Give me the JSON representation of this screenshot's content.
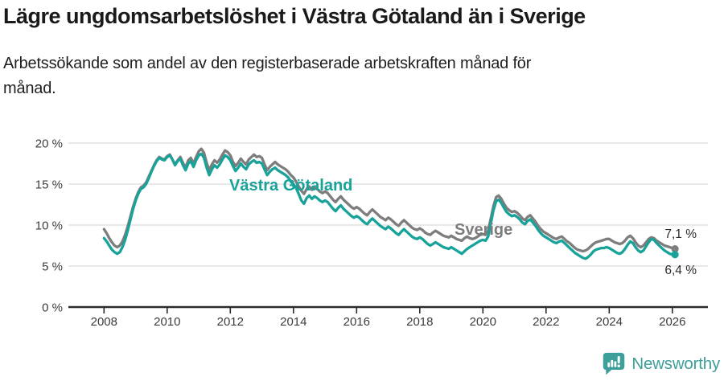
{
  "header": {
    "title": "Lägre ungdomsarbetslöshet i Västra Götaland än i Sverige",
    "subtitle": "Arbetssökande som andel av den registerbaserade arbetskraften månad för månad.",
    "subtitle_lines": [
      "Arbetssökande som andel av den registerbaserade arbetskraften månad för",
      "månad."
    ]
  },
  "colors": {
    "accent_teal": "#17a29a",
    "line_gray": "#7d7d7d",
    "logo_teal": "#3d9e9a",
    "axis": "#2b2b2b",
    "grid": "#dcdcdc",
    "tick_text": "#3c3c3c",
    "annotation_text": "#2b2b2b"
  },
  "footer": {
    "brand": "Newsworthy"
  },
  "chart_data": {
    "type": "line",
    "title": "Lägre ungdomsarbetslöshet i Västra Götaland än i Sverige",
    "subtitle": "Arbetssökande som andel av den registerbaserade arbetskraften månad för månad.",
    "x_unit": "month",
    "x_start": "2008-01",
    "x_end": "2026-02",
    "ylim": [
      0,
      20
    ],
    "grid": "horizontal",
    "legend_position": "inline-labels",
    "x_ticks": [
      2008,
      2010,
      2012,
      2014,
      2016,
      2018,
      2020,
      2022,
      2024,
      2026
    ],
    "y_ticks": [
      {
        "value": 20,
        "label": "20 %"
      },
      {
        "value": 15,
        "label": "15 %"
      },
      {
        "value": 10,
        "label": "10 %"
      },
      {
        "value": 5,
        "label": "5 %"
      },
      {
        "value": 0,
        "label": "0 %"
      }
    ],
    "series": [
      {
        "name": "Sverige",
        "color": "#7d7d7d",
        "end_label": "7,1 %",
        "end_value": 7.1,
        "values": [
          9.5,
          9.0,
          8.4,
          7.9,
          7.5,
          7.3,
          7.5,
          8.0,
          8.8,
          9.8,
          11.0,
          12.2,
          13.2,
          14.0,
          14.6,
          14.8,
          15.2,
          15.9,
          16.6,
          17.3,
          17.9,
          18.3,
          18.1,
          18.0,
          18.4,
          18.6,
          18.0,
          17.4,
          17.9,
          18.3,
          17.6,
          17.0,
          17.9,
          18.2,
          17.5,
          18.3,
          19.0,
          19.3,
          18.8,
          17.6,
          16.7,
          17.4,
          17.9,
          17.6,
          18.0,
          18.6,
          19.1,
          18.9,
          18.5,
          17.7,
          17.2,
          17.6,
          18.1,
          17.7,
          17.4,
          18.0,
          18.3,
          18.6,
          18.3,
          18.4,
          18.2,
          17.4,
          16.7,
          17.1,
          17.4,
          17.7,
          17.4,
          17.2,
          17.0,
          16.8,
          16.5,
          16.1,
          15.8,
          15.3,
          14.7,
          14.2,
          13.8,
          14.4,
          14.7,
          14.3,
          14.6,
          14.4,
          14.1,
          13.9,
          14.1,
          13.9,
          13.5,
          13.1,
          12.8,
          13.2,
          13.5,
          13.1,
          12.8,
          12.5,
          12.2,
          12.0,
          12.2,
          12.0,
          11.7,
          11.4,
          11.2,
          11.6,
          11.9,
          11.6,
          11.3,
          11.0,
          10.8,
          10.6,
          10.9,
          10.7,
          10.4,
          10.1,
          9.9,
          10.3,
          10.6,
          10.3,
          10.0,
          9.7,
          9.5,
          9.4,
          9.6,
          9.4,
          9.1,
          8.9,
          8.8,
          9.1,
          9.3,
          9.1,
          8.9,
          8.7,
          8.6,
          8.5,
          8.7,
          8.5,
          8.3,
          8.2,
          8.1,
          8.4,
          8.6,
          8.4,
          8.3,
          8.4,
          8.6,
          8.8,
          8.9,
          8.8,
          9.3,
          10.8,
          12.3,
          13.4,
          13.6,
          13.2,
          12.6,
          12.1,
          11.8,
          11.6,
          11.7,
          11.5,
          11.2,
          10.8,
          10.6,
          11.0,
          11.2,
          10.8,
          10.4,
          9.9,
          9.5,
          9.2,
          9.0,
          8.8,
          8.6,
          8.4,
          8.3,
          8.5,
          8.6,
          8.3,
          8.0,
          7.8,
          7.5,
          7.2,
          7.0,
          6.9,
          6.8,
          6.9,
          7.1,
          7.4,
          7.7,
          7.9,
          8.0,
          8.1,
          8.2,
          8.3,
          8.3,
          8.1,
          7.9,
          7.8,
          7.7,
          7.8,
          8.1,
          8.5,
          8.7,
          8.4,
          7.9,
          7.5,
          7.3,
          7.5,
          7.9,
          8.3,
          8.5,
          8.4,
          8.1,
          7.9,
          7.7,
          7.5,
          7.4,
          7.3,
          7.2,
          7.1
        ]
      },
      {
        "name": "Västra Götaland",
        "color": "#17a29a",
        "end_label": "6,4 %",
        "end_value": 6.4,
        "values": [
          8.4,
          8.0,
          7.5,
          7.0,
          6.7,
          6.5,
          6.7,
          7.3,
          8.2,
          9.3,
          10.6,
          11.9,
          13.0,
          13.8,
          14.4,
          14.6,
          15.0,
          15.7,
          16.5,
          17.2,
          17.8,
          18.2,
          18.0,
          17.9,
          18.3,
          18.5,
          18.0,
          17.3,
          17.8,
          18.1,
          17.3,
          16.7,
          17.5,
          17.8,
          17.1,
          17.9,
          18.5,
          18.7,
          18.2,
          17.0,
          16.1,
          16.8,
          17.3,
          17.0,
          17.4,
          18.0,
          18.5,
          18.3,
          17.9,
          17.2,
          16.6,
          17.0,
          17.5,
          17.1,
          16.8,
          17.4,
          17.7,
          17.9,
          17.6,
          17.7,
          17.5,
          16.8,
          16.1,
          16.5,
          16.8,
          17.0,
          16.7,
          16.5,
          16.3,
          16.1,
          15.8,
          15.3,
          15.0,
          14.5,
          13.8,
          13.0,
          12.6,
          13.3,
          13.6,
          13.2,
          13.5,
          13.3,
          13.0,
          12.8,
          13.0,
          12.8,
          12.4,
          12.0,
          11.7,
          12.1,
          12.4,
          12.0,
          11.7,
          11.4,
          11.1,
          10.9,
          11.1,
          10.9,
          10.6,
          10.3,
          10.1,
          10.5,
          10.8,
          10.5,
          10.2,
          9.9,
          9.7,
          9.5,
          9.8,
          9.6,
          9.3,
          9.0,
          8.8,
          9.2,
          9.5,
          9.2,
          8.9,
          8.6,
          8.4,
          8.3,
          8.5,
          8.3,
          8.0,
          7.7,
          7.5,
          7.7,
          7.9,
          7.7,
          7.5,
          7.3,
          7.2,
          7.1,
          7.3,
          7.1,
          6.9,
          6.7,
          6.5,
          6.8,
          7.1,
          7.3,
          7.5,
          7.7,
          7.9,
          8.1,
          8.2,
          8.1,
          8.6,
          10.2,
          11.8,
          12.9,
          13.1,
          12.7,
          12.1,
          11.6,
          11.3,
          11.1,
          11.2,
          11.0,
          10.7,
          10.3,
          10.1,
          10.5,
          10.7,
          10.3,
          9.9,
          9.4,
          9.0,
          8.7,
          8.5,
          8.3,
          8.1,
          7.9,
          7.8,
          8.0,
          8.1,
          7.8,
          7.5,
          7.2,
          6.9,
          6.6,
          6.4,
          6.2,
          6.0,
          5.9,
          6.1,
          6.4,
          6.8,
          7.0,
          7.1,
          7.2,
          7.2,
          7.3,
          7.2,
          7.0,
          6.8,
          6.6,
          6.5,
          6.7,
          7.1,
          7.6,
          8.0,
          7.8,
          7.3,
          6.9,
          6.7,
          6.9,
          7.4,
          7.9,
          8.3,
          8.2,
          7.8,
          7.5,
          7.2,
          6.9,
          6.7,
          6.5,
          6.4,
          6.4
        ]
      }
    ]
  }
}
